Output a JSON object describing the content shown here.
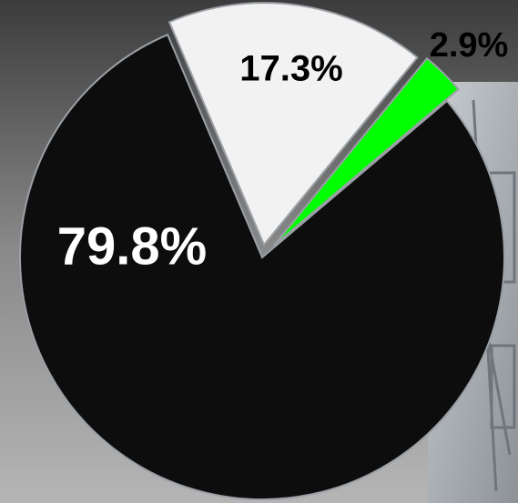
{
  "chart_data": {
    "type": "pie",
    "values": [
      79.8,
      17.3,
      2.9
    ],
    "value_labels": [
      "79.8%",
      "17.3%",
      "2.9%"
    ],
    "colors": [
      "#0d0d0d",
      "#f2f2f2",
      "#00ff00"
    ]
  }
}
